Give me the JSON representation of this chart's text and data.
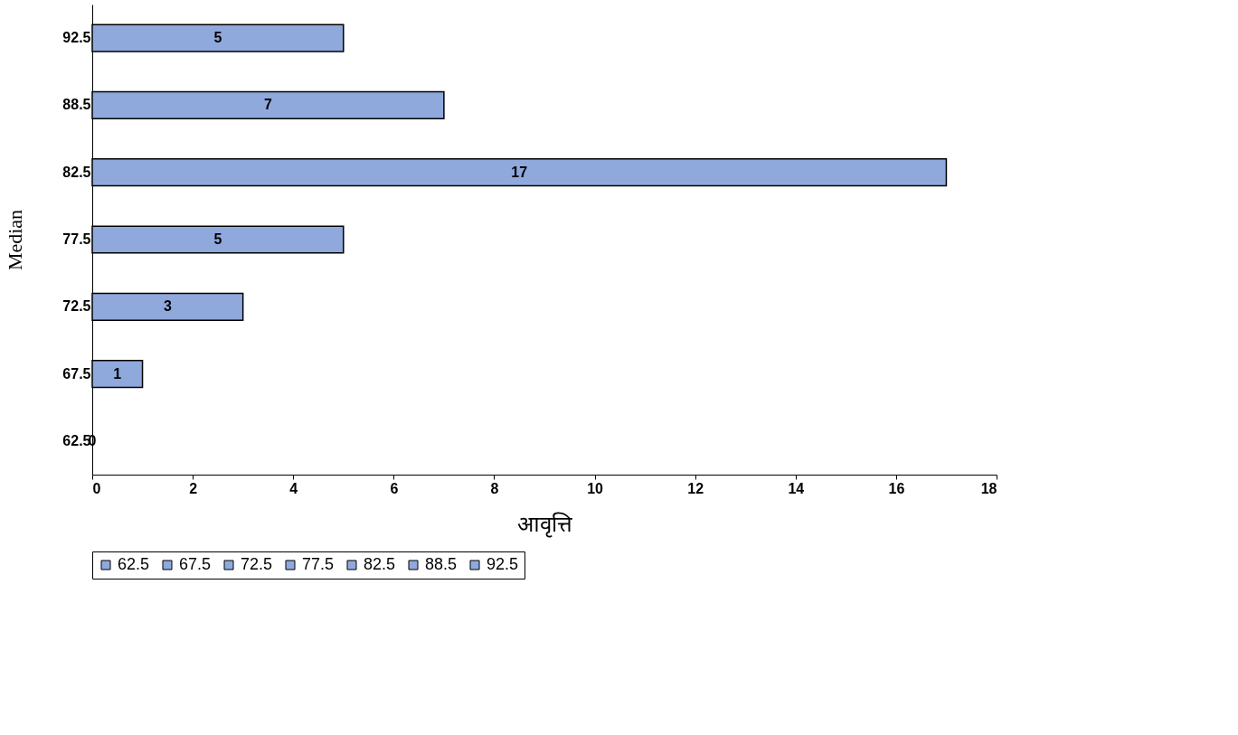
{
  "chart_data": {
    "type": "bar",
    "orientation": "horizontal",
    "categories": [
      "92.5",
      "88.5",
      "82.5",
      "77.5",
      "72.5",
      "67.5",
      "62.5"
    ],
    "series": [
      {
        "name": "62.5",
        "color": "#8fa9dc",
        "values": [
          null,
          null,
          null,
          null,
          null,
          null,
          0
        ]
      },
      {
        "name": "67.5",
        "color": "#8fa9dc",
        "values": [
          null,
          null,
          null,
          null,
          null,
          1,
          null
        ]
      },
      {
        "name": "72.5",
        "color": "#8fa9dc",
        "values": [
          null,
          null,
          null,
          null,
          3,
          null,
          null
        ]
      },
      {
        "name": "77.5",
        "color": "#8fa9dc",
        "values": [
          null,
          null,
          null,
          5,
          null,
          null,
          null
        ]
      },
      {
        "name": "82.5",
        "color": "#8fa9dc",
        "values": [
          null,
          null,
          17,
          null,
          null,
          null,
          null
        ]
      },
      {
        "name": "88.5",
        "color": "#8fa9dc",
        "values": [
          null,
          7,
          null,
          null,
          null,
          null,
          null
        ]
      },
      {
        "name": "92.5",
        "color": "#8fa9dc",
        "values": [
          5,
          null,
          null,
          null,
          null,
          null,
          null
        ]
      }
    ],
    "xlim": [
      0,
      18
    ],
    "xticks": [
      0,
      2,
      4,
      6,
      8,
      10,
      12,
      14,
      16,
      18
    ],
    "xlabel": "आवृत्ति",
    "ylabel": "Median",
    "data_labels": true,
    "grid": false,
    "legend": "bottom"
  }
}
